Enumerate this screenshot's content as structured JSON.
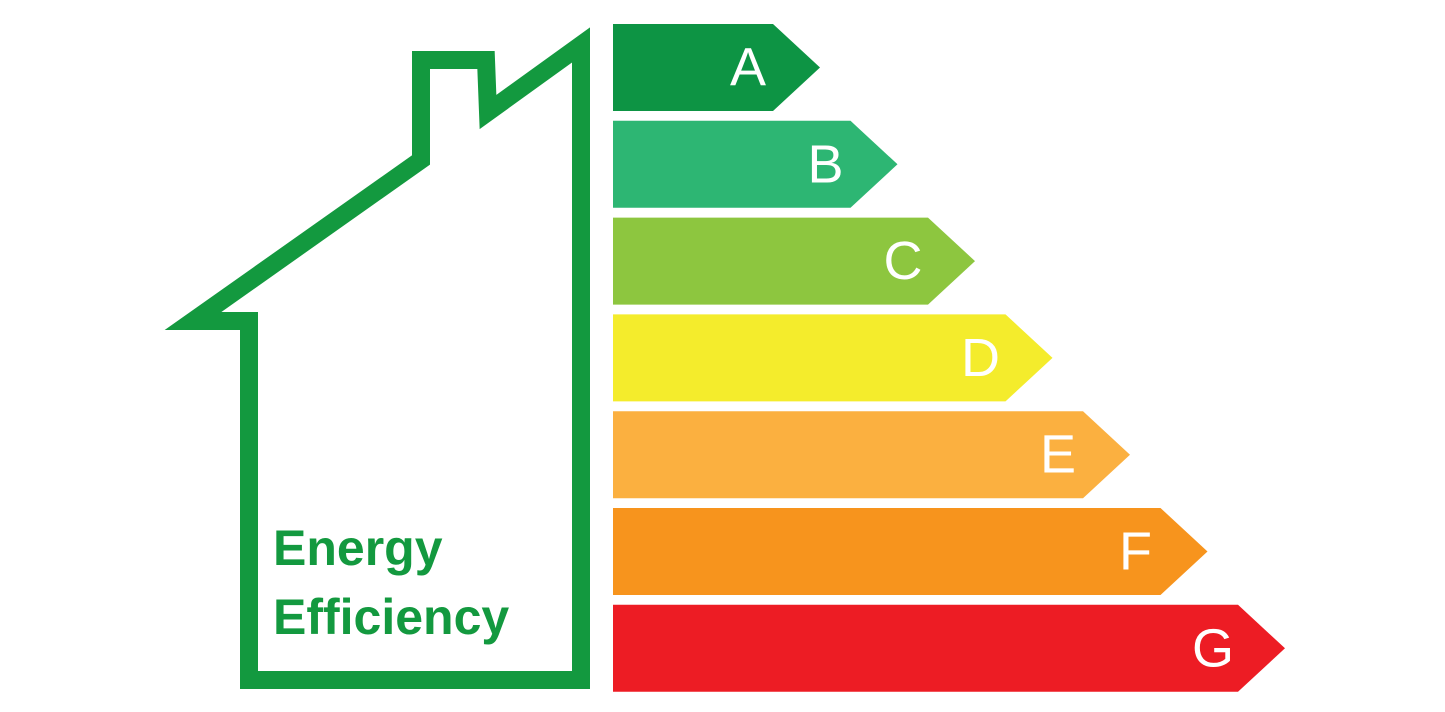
{
  "label": {
    "lines": [
      "Energy",
      "Efficiency"
    ],
    "color": "#13993f"
  },
  "ratings": [
    {
      "label": "A",
      "color": "#0d9444"
    },
    {
      "label": "B",
      "color": "#2db673"
    },
    {
      "label": "C",
      "color": "#8dc63f"
    },
    {
      "label": "D",
      "color": "#f4ec2c"
    },
    {
      "label": "E",
      "color": "#fbb040"
    },
    {
      "label": "F",
      "color": "#f7941d"
    },
    {
      "label": "G",
      "color": "#ed1c24"
    }
  ]
}
